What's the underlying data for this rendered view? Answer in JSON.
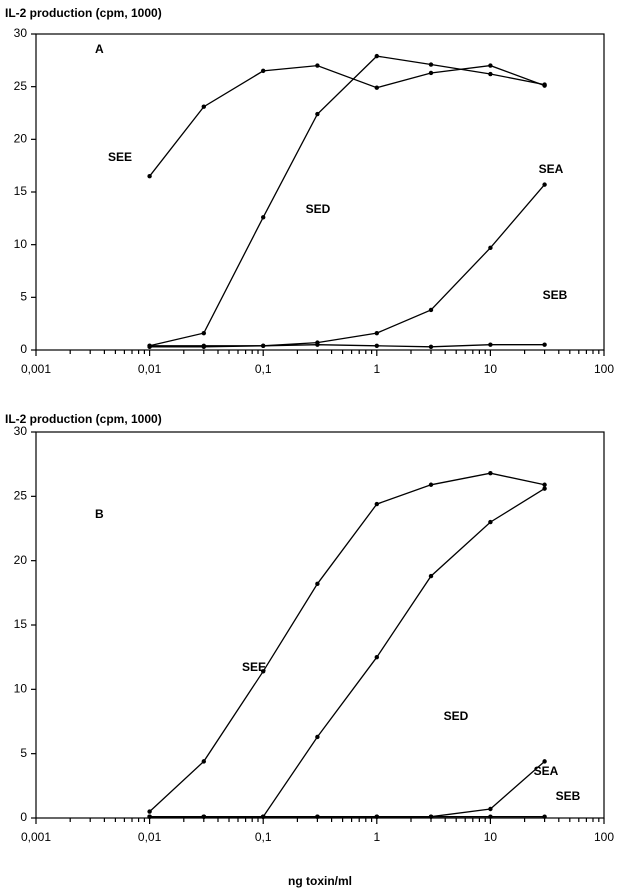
{
  "chart_data": [
    {
      "type": "line",
      "panel_label": "A",
      "y_label": "IL-2 production (cpm,  1000)",
      "x": [
        0.01,
        0.03,
        0.1,
        0.3,
        1,
        3,
        10,
        30
      ],
      "log_x": true,
      "xlim": [
        0.001,
        100
      ],
      "xticks": [
        {
          "value": 0.001,
          "label": "0,001"
        },
        {
          "value": 0.01,
          "label": "0,01"
        },
        {
          "value": 0.1,
          "label": "0,1"
        },
        1,
        10,
        100
      ],
      "ylim": [
        0,
        30
      ],
      "yticks": [
        0,
        5,
        10,
        15,
        20,
        25,
        30
      ],
      "series": [
        {
          "name": "SEE",
          "color": "#000000",
          "values": [
            16.5,
            23.1,
            26.5,
            27,
            24.9,
            26.3,
            27,
            25.1
          ]
        },
        {
          "name": "SED",
          "color": "#000000",
          "values": [
            0.4,
            1.6,
            12.6,
            22.4,
            27.9,
            27.1,
            26.2,
            25.2
          ]
        },
        {
          "name": "SEA",
          "color": "#000000",
          "values": [
            0.4,
            0.4,
            0.4,
            0.7,
            1.6,
            3.8,
            9.7,
            15.7
          ]
        },
        {
          "name": "SEB",
          "color": "#000000",
          "values": [
            0.3,
            0.3,
            0.4,
            0.5,
            0.4,
            0.3,
            0.5,
            0.5
          ]
        }
      ]
    },
    {
      "type": "line",
      "panel_label": "B",
      "y_label": "IL-2 production (cpm,  1000)",
      "x_label": "ng toxin/ml",
      "x": [
        0.01,
        0.03,
        0.1,
        0.3,
        1,
        3,
        10,
        30
      ],
      "log_x": true,
      "xlim": [
        0.001,
        100
      ],
      "xticks": [
        {
          "value": 0.001,
          "label": "0,001"
        },
        {
          "value": 0.01,
          "label": "0,01"
        },
        {
          "value": 0.1,
          "label": "0,1"
        },
        1,
        10,
        100
      ],
      "ylim": [
        0,
        30
      ],
      "yticks": [
        0,
        5,
        10,
        15,
        20,
        25,
        30
      ],
      "series": [
        {
          "name": "SEE",
          "color": "#000000",
          "values": [
            0.5,
            4.4,
            11.4,
            18.2,
            24.4,
            25.9,
            26.8,
            25.9
          ]
        },
        {
          "name": "SED",
          "color": "#000000",
          "values": [
            0.1,
            0.1,
            0.1,
            6.3,
            12.5,
            18.8,
            23,
            25.6
          ]
        },
        {
          "name": "SEA",
          "color": "#000000",
          "values": [
            0.1,
            0.1,
            0.1,
            0.1,
            0.1,
            0.1,
            0.7,
            4.4
          ]
        },
        {
          "name": "SEB",
          "color": "#000000",
          "values": [
            0.1,
            0.1,
            0.1,
            0.1,
            0.1,
            0.1,
            0.1,
            0.1
          ]
        }
      ]
    }
  ]
}
